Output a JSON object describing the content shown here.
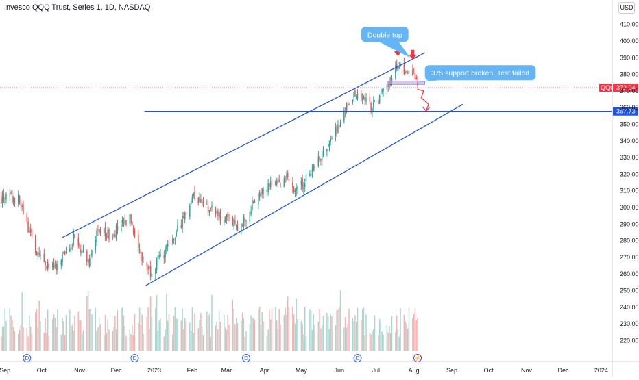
{
  "header": {
    "title": "Invesco QQQ Trust, Series 1, 1D, NASDAQ",
    "currency": "USD"
  },
  "colors": {
    "up": "#26a69a",
    "down": "#ef5350",
    "vol_up": "#a8d8d2",
    "vol_down": "#f6b3b1",
    "channel": "#1e53e5",
    "support_line": "#1e53e5",
    "arrow": "#f23645",
    "callout": "#64b5f6",
    "current_price": "#f23645",
    "zone": "#b39ddb"
  },
  "chart_data": {
    "type": "candlestick",
    "symbol": "QQQ",
    "interval": "1D",
    "exchange": "NASDAQ",
    "y_range": [
      214,
      414
    ],
    "y_ticks": [
      "410.00",
      "400.00",
      "390.00",
      "380.00",
      "370.00",
      "360.00",
      "350.00",
      "340.00",
      "330.00",
      "320.00",
      "310.00",
      "300.00",
      "290.00",
      "280.00",
      "270.00",
      "260.00",
      "250.00",
      "240.00",
      "230.00",
      "220.00"
    ],
    "y_tick_values": [
      410,
      400,
      390,
      380,
      370,
      360,
      350,
      340,
      330,
      320,
      310,
      300,
      290,
      280,
      270,
      260,
      250,
      240,
      230,
      220
    ],
    "x_labels": [
      "Sep",
      "Oct",
      "Nov",
      "Dec",
      "2023",
      "Feb",
      "Mar",
      "Apr",
      "May",
      "Jun",
      "Jul",
      "Aug",
      "Sep",
      "Oct",
      "Nov",
      "Dec",
      "2024"
    ],
    "x_label_dates": [
      "2022-09-01",
      "2022-10-01",
      "2022-11-01",
      "2022-12-01",
      "2023-01-01",
      "2023-02-01",
      "2023-03-01",
      "2023-04-01",
      "2023-05-01",
      "2023-06-01",
      "2023-07-01",
      "2023-08-01",
      "2023-09-01",
      "2023-10-01",
      "2023-11-01",
      "2023-12-01",
      "2024-01-01"
    ],
    "x_range": [
      "2022-08-28",
      "2024-01-10"
    ],
    "price_path": [
      {
        "date": "2022-08-28",
        "close": 305
      },
      {
        "date": "2022-09-12",
        "close": 305
      },
      {
        "date": "2022-09-28",
        "close": 270
      },
      {
        "date": "2022-10-13",
        "close": 262
      },
      {
        "date": "2022-10-27",
        "close": 282
      },
      {
        "date": "2022-11-09",
        "close": 268
      },
      {
        "date": "2022-11-16",
        "close": 286
      },
      {
        "date": "2022-11-25",
        "close": 283
      },
      {
        "date": "2022-12-13",
        "close": 293
      },
      {
        "date": "2022-12-22",
        "close": 269
      },
      {
        "date": "2022-12-29",
        "close": 262
      },
      {
        "date": "2023-01-15",
        "close": 278
      },
      {
        "date": "2023-02-02",
        "close": 308
      },
      {
        "date": "2023-02-20",
        "close": 296
      },
      {
        "date": "2023-03-13",
        "close": 288
      },
      {
        "date": "2023-03-25",
        "close": 307
      },
      {
        "date": "2023-04-05",
        "close": 315
      },
      {
        "date": "2023-04-20",
        "close": 317
      },
      {
        "date": "2023-04-28",
        "close": 310
      },
      {
        "date": "2023-05-12",
        "close": 325
      },
      {
        "date": "2023-05-25",
        "close": 340
      },
      {
        "date": "2023-06-08",
        "close": 360
      },
      {
        "date": "2023-06-15",
        "close": 370
      },
      {
        "date": "2023-06-28",
        "close": 360
      },
      {
        "date": "2023-07-10",
        "close": 372
      },
      {
        "date": "2023-07-19",
        "close": 386
      },
      {
        "date": "2023-07-25",
        "close": 378
      },
      {
        "date": "2023-07-31",
        "close": 383
      },
      {
        "date": "2023-08-04",
        "close": 372
      }
    ],
    "volume_range": [
      214,
      250
    ],
    "current_price": {
      "symbol": "QQQ",
      "value": "372.04"
    },
    "support_level": {
      "label": "357.73",
      "value": 357.73,
      "start": "2022-12-24"
    },
    "channel_upper": {
      "start": {
        "date": "2022-10-18",
        "price": 282
      },
      "end": {
        "date": "2023-08-10",
        "price": 393
      }
    },
    "channel_lower": {
      "start": {
        "date": "2022-12-25",
        "price": 253
      },
      "end": {
        "date": "2023-09-10",
        "price": 362
      }
    },
    "support_zone": {
      "from": "2023-07-10",
      "to": "2023-08-10",
      "low": 374,
      "high": 376
    },
    "double_top_markers": [
      {
        "date": "2023-07-19",
        "price": 391
      },
      {
        "date": "2023-07-31",
        "price": 389
      }
    ],
    "projection": [
      {
        "date": "2023-08-04",
        "price": 371
      },
      {
        "date": "2023-08-09",
        "price": 370
      },
      {
        "date": "2023-08-07",
        "price": 366
      },
      {
        "date": "2023-08-13",
        "price": 362
      },
      {
        "date": "2023-08-11",
        "price": 358
      }
    ],
    "events": [
      {
        "date": "2022-09-19",
        "label": "D"
      },
      {
        "date": "2022-12-16",
        "label": "D"
      },
      {
        "date": "2023-03-17",
        "label": "D"
      },
      {
        "date": "2023-06-16",
        "label": "D"
      },
      {
        "date": "2023-08-04",
        "label": "⚡"
      }
    ],
    "annotations": [
      {
        "text": "Double top",
        "date": "2023-06-19",
        "price": 404,
        "target_date": "2023-07-29",
        "target_price": 390
      },
      {
        "text": "375 support broken. Test failed",
        "date": "2023-08-10",
        "price": 381,
        "target_date": "2023-08-03",
        "target_price": 375
      }
    ]
  }
}
